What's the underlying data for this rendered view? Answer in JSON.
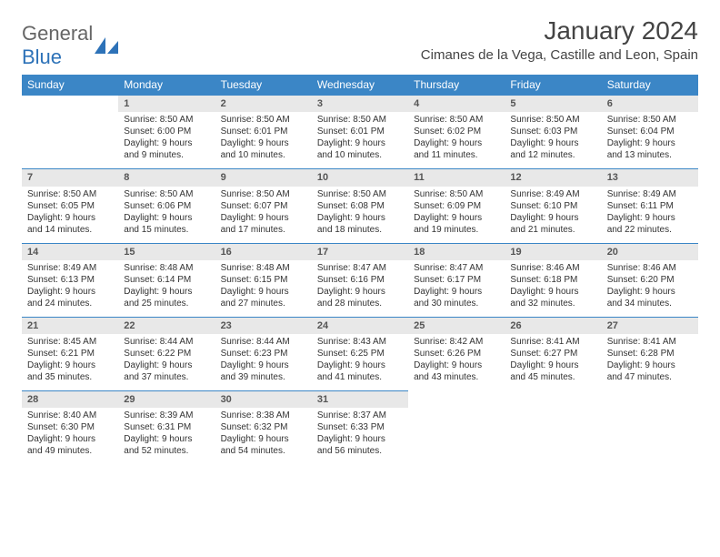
{
  "logo": {
    "text1": "General",
    "text2": "Blue"
  },
  "title": "January 2024",
  "location": "Cimanes de la Vega, Castille and Leon, Spain",
  "theme": {
    "header_bg": "#3b86c6",
    "header_fg": "#ffffff",
    "rule": "#3b86c6",
    "daynum_bg": "#e8e8e8",
    "body_bg": "#ffffff",
    "text": "#333333"
  },
  "weekdays": [
    "Sunday",
    "Monday",
    "Tuesday",
    "Wednesday",
    "Thursday",
    "Friday",
    "Saturday"
  ],
  "start_offset": 1,
  "days": [
    {
      "n": 1,
      "sr": "8:50 AM",
      "ss": "6:00 PM",
      "dl": "9 hours and 9 minutes."
    },
    {
      "n": 2,
      "sr": "8:50 AM",
      "ss": "6:01 PM",
      "dl": "9 hours and 10 minutes."
    },
    {
      "n": 3,
      "sr": "8:50 AM",
      "ss": "6:01 PM",
      "dl": "9 hours and 10 minutes."
    },
    {
      "n": 4,
      "sr": "8:50 AM",
      "ss": "6:02 PM",
      "dl": "9 hours and 11 minutes."
    },
    {
      "n": 5,
      "sr": "8:50 AM",
      "ss": "6:03 PM",
      "dl": "9 hours and 12 minutes."
    },
    {
      "n": 6,
      "sr": "8:50 AM",
      "ss": "6:04 PM",
      "dl": "9 hours and 13 minutes."
    },
    {
      "n": 7,
      "sr": "8:50 AM",
      "ss": "6:05 PM",
      "dl": "9 hours and 14 minutes."
    },
    {
      "n": 8,
      "sr": "8:50 AM",
      "ss": "6:06 PM",
      "dl": "9 hours and 15 minutes."
    },
    {
      "n": 9,
      "sr": "8:50 AM",
      "ss": "6:07 PM",
      "dl": "9 hours and 17 minutes."
    },
    {
      "n": 10,
      "sr": "8:50 AM",
      "ss": "6:08 PM",
      "dl": "9 hours and 18 minutes."
    },
    {
      "n": 11,
      "sr": "8:50 AM",
      "ss": "6:09 PM",
      "dl": "9 hours and 19 minutes."
    },
    {
      "n": 12,
      "sr": "8:49 AM",
      "ss": "6:10 PM",
      "dl": "9 hours and 21 minutes."
    },
    {
      "n": 13,
      "sr": "8:49 AM",
      "ss": "6:11 PM",
      "dl": "9 hours and 22 minutes."
    },
    {
      "n": 14,
      "sr": "8:49 AM",
      "ss": "6:13 PM",
      "dl": "9 hours and 24 minutes."
    },
    {
      "n": 15,
      "sr": "8:48 AM",
      "ss": "6:14 PM",
      "dl": "9 hours and 25 minutes."
    },
    {
      "n": 16,
      "sr": "8:48 AM",
      "ss": "6:15 PM",
      "dl": "9 hours and 27 minutes."
    },
    {
      "n": 17,
      "sr": "8:47 AM",
      "ss": "6:16 PM",
      "dl": "9 hours and 28 minutes."
    },
    {
      "n": 18,
      "sr": "8:47 AM",
      "ss": "6:17 PM",
      "dl": "9 hours and 30 minutes."
    },
    {
      "n": 19,
      "sr": "8:46 AM",
      "ss": "6:18 PM",
      "dl": "9 hours and 32 minutes."
    },
    {
      "n": 20,
      "sr": "8:46 AM",
      "ss": "6:20 PM",
      "dl": "9 hours and 34 minutes."
    },
    {
      "n": 21,
      "sr": "8:45 AM",
      "ss": "6:21 PM",
      "dl": "9 hours and 35 minutes."
    },
    {
      "n": 22,
      "sr": "8:44 AM",
      "ss": "6:22 PM",
      "dl": "9 hours and 37 minutes."
    },
    {
      "n": 23,
      "sr": "8:44 AM",
      "ss": "6:23 PM",
      "dl": "9 hours and 39 minutes."
    },
    {
      "n": 24,
      "sr": "8:43 AM",
      "ss": "6:25 PM",
      "dl": "9 hours and 41 minutes."
    },
    {
      "n": 25,
      "sr": "8:42 AM",
      "ss": "6:26 PM",
      "dl": "9 hours and 43 minutes."
    },
    {
      "n": 26,
      "sr": "8:41 AM",
      "ss": "6:27 PM",
      "dl": "9 hours and 45 minutes."
    },
    {
      "n": 27,
      "sr": "8:41 AM",
      "ss": "6:28 PM",
      "dl": "9 hours and 47 minutes."
    },
    {
      "n": 28,
      "sr": "8:40 AM",
      "ss": "6:30 PM",
      "dl": "9 hours and 49 minutes."
    },
    {
      "n": 29,
      "sr": "8:39 AM",
      "ss": "6:31 PM",
      "dl": "9 hours and 52 minutes."
    },
    {
      "n": 30,
      "sr": "8:38 AM",
      "ss": "6:32 PM",
      "dl": "9 hours and 54 minutes."
    },
    {
      "n": 31,
      "sr": "8:37 AM",
      "ss": "6:33 PM",
      "dl": "9 hours and 56 minutes."
    }
  ],
  "labels": {
    "sunrise": "Sunrise:",
    "sunset": "Sunset:",
    "daylight": "Daylight:"
  }
}
